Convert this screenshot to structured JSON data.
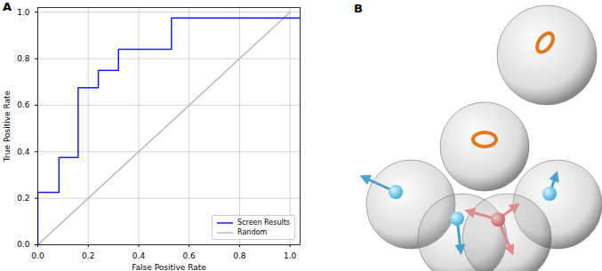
{
  "chart_data": {
    "type": "line",
    "title": "A",
    "xlabel": "False Positive Rate",
    "ylabel": "True Positive Rate",
    "series": [
      {
        "name": "Screen Results",
        "color": "#1a1aff",
        "x": [
          0,
          0,
          0.084,
          0.084,
          0.16,
          0.16,
          0.24,
          0.24,
          0.32,
          0.32,
          0.53,
          0.53,
          1.0,
          1.04
        ],
        "values": [
          0,
          0.225,
          0.225,
          0.375,
          0.375,
          0.675,
          0.675,
          0.75,
          0.75,
          0.84,
          0.84,
          0.975,
          0.975,
          0.975
        ]
      },
      {
        "name": "Random",
        "color": "#b8b8b8",
        "x": [
          0,
          1.0
        ],
        "values": [
          0,
          1.0
        ]
      }
    ],
    "xlim": [
      0,
      1.04
    ],
    "ylim": [
      0,
      1.02
    ],
    "xticks": [
      {
        "value": 0,
        "label": "0.0"
      },
      0.2,
      0.4,
      0.6,
      0.8,
      {
        "value": 1,
        "label": "1.0"
      }
    ],
    "yticks": [
      {
        "value": 0,
        "label": "0.0"
      },
      0.2,
      0.4,
      0.6,
      0.8,
      {
        "value": 1,
        "label": "1.0"
      }
    ],
    "grid": true,
    "legend": "lower right"
  },
  "diagram": {
    "label": "B"
  }
}
